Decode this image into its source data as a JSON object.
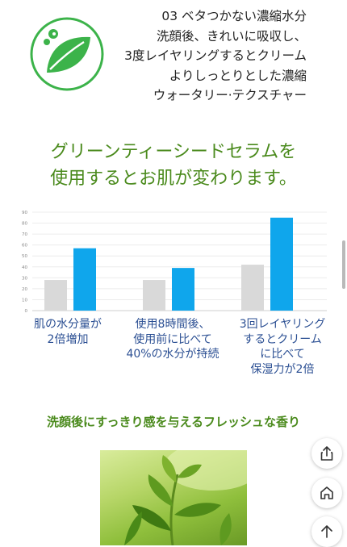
{
  "feature": {
    "lines": [
      "03  ベタつかない濃縮水分",
      "洗顔後、きれいに吸収し、",
      "3度レイヤリングするとクリーム",
      "よりしっとりとした濃縮",
      "ウォータリー·テクスチャー"
    ]
  },
  "heading": {
    "line1": "グリーンティーシードセラムを",
    "line2": "使用するとお肌が変わります。"
  },
  "chart_data": {
    "type": "bar",
    "categories": [
      "肌の水分量が\n2倍増加",
      "使用8時間後、\n使用前に比べて\n40%の水分が持続",
      "3回レイヤリング\nするとクリーム\nに比べて\n保湿力が2倍"
    ],
    "category_lines": [
      [
        "肌の水分量が",
        "2倍増加"
      ],
      [
        "使用8時間後、",
        "使用前に比べて",
        "40%の水分が持続"
      ],
      [
        "3回レイヤリング",
        "するとクリーム",
        "に比べて",
        "保湿力が2倍"
      ]
    ],
    "series": [
      {
        "values": [
          28,
          28,
          42
        ],
        "color": "#d9d9d9"
      },
      {
        "values": [
          57,
          39,
          85
        ],
        "color": "#0fa6ec"
      }
    ],
    "yticks": [
      "0",
      "10",
      "20",
      "30",
      "40",
      "50",
      "60",
      "70",
      "80",
      "90"
    ],
    "ylim": [
      0,
      90
    ],
    "grid": true
  },
  "subheading": "洗顔後にすっきり感を与えるフレッシュな香り",
  "icons": {
    "logo": "leaf-icon",
    "share": "share-icon",
    "home": "home-icon",
    "top": "arrow-up-icon"
  }
}
